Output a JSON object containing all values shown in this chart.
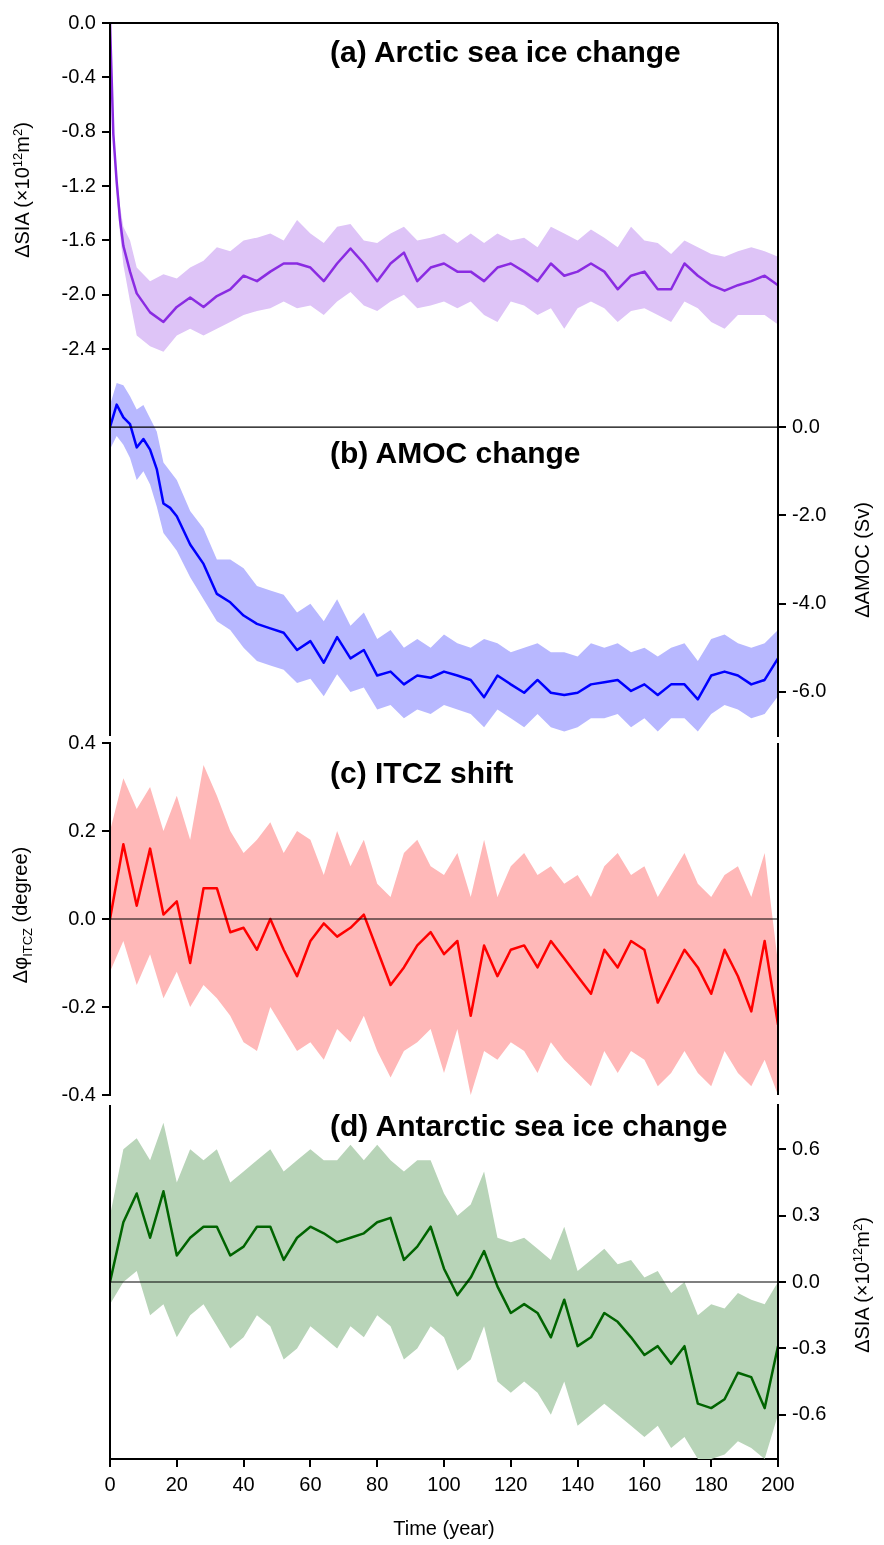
{
  "chart_data": [
    {
      "type": "line",
      "title": "(a) Arctic sea ice change",
      "ylabel": "ΔSIA (×10$^{12}$m$^{2}$)",
      "tick_labels": "y",
      "xlim": [
        0,
        200
      ],
      "ylim": [
        -2.9,
        0
      ],
      "yticks": [
        {
          "value": 0,
          "label": "0.0"
        },
        {
          "value": -0.4,
          "label": "-0.4"
        },
        {
          "value": -0.8,
          "label": "-0.8"
        },
        {
          "value": -1.2,
          "label": "-1.2"
        },
        {
          "value": -1.6,
          "label": "-1.6"
        },
        {
          "value": -2.0,
          "label": "-2.0"
        },
        {
          "value": -2.4,
          "label": "-2.4"
        }
      ],
      "x": [
        0,
        1,
        2,
        3,
        4,
        6,
        8,
        12,
        16,
        20,
        24,
        28,
        32,
        36,
        40,
        44,
        48,
        52,
        56,
        60,
        64,
        68,
        72,
        76,
        80,
        84,
        88,
        92,
        96,
        100,
        104,
        108,
        112,
        116,
        120,
        124,
        128,
        132,
        136,
        140,
        144,
        148,
        152,
        156,
        160,
        164,
        168,
        172,
        176,
        180,
        184,
        188,
        192,
        196,
        200
      ],
      "series": [
        {
          "color": "#8a2be2",
          "values": [
            0,
            -0.82,
            -1.17,
            -1.45,
            -1.64,
            -1.83,
            -1.99,
            -2.13,
            -2.2,
            -2.09,
            -2.02,
            -2.09,
            -2.01,
            -1.96,
            -1.86,
            -1.9,
            -1.83,
            -1.77,
            -1.77,
            -1.8,
            -1.9,
            -1.77,
            -1.66,
            -1.77,
            -1.9,
            -1.77,
            -1.69,
            -1.9,
            -1.8,
            -1.77,
            -1.83,
            -1.83,
            -1.9,
            -1.8,
            -1.77,
            -1.83,
            -1.9,
            -1.77,
            -1.86,
            -1.83,
            -1.77,
            -1.83,
            -1.96,
            -1.86,
            -1.83,
            -1.96,
            -1.96,
            -1.77,
            -1.86,
            -1.93,
            -1.97,
            -1.93,
            -1.9,
            -1.86,
            -1.93
          ],
          "upper": [
            0,
            -0.78,
            -1.1,
            -1.35,
            -1.5,
            -1.6,
            -1.8,
            -1.9,
            -1.85,
            -1.88,
            -1.8,
            -1.75,
            -1.65,
            -1.68,
            -1.6,
            -1.58,
            -1.55,
            -1.6,
            -1.45,
            -1.55,
            -1.62,
            -1.5,
            -1.48,
            -1.6,
            -1.62,
            -1.55,
            -1.5,
            -1.6,
            -1.58,
            -1.55,
            -1.62,
            -1.55,
            -1.62,
            -1.55,
            -1.6,
            -1.58,
            -1.65,
            -1.5,
            -1.55,
            -1.6,
            -1.52,
            -1.58,
            -1.65,
            -1.5,
            -1.6,
            -1.62,
            -1.7,
            -1.6,
            -1.65,
            -1.7,
            -1.72,
            -1.68,
            -1.65,
            -1.68,
            -1.72
          ],
          "lower": [
            0,
            -0.85,
            -1.25,
            -1.55,
            -1.78,
            -2.05,
            -2.3,
            -2.38,
            -2.42,
            -2.3,
            -2.25,
            -2.3,
            -2.25,
            -2.2,
            -2.15,
            -2.12,
            -2.1,
            -2.05,
            -2.1,
            -2.08,
            -2.15,
            -2.05,
            -1.98,
            -2.08,
            -2.12,
            -2.05,
            -2.0,
            -2.1,
            -2.08,
            -2.05,
            -2.1,
            -2.05,
            -2.15,
            -2.2,
            -2.05,
            -2.08,
            -2.15,
            -2.1,
            -2.25,
            -2.1,
            -2.05,
            -2.1,
            -2.2,
            -2.12,
            -2.1,
            -2.15,
            -2.2,
            -2.05,
            -2.1,
            -2.2,
            -2.25,
            -2.15,
            -2.15,
            -2.15,
            -2.22
          ]
        }
      ]
    },
    {
      "type": "line",
      "title": "(b) AMOC change",
      "y2label": "ΔAMOC (Sv)",
      "tick_labels": "y",
      "xlim": [
        0,
        200
      ],
      "y2lim": [
        -7,
        1
      ],
      "y2ticks": [
        {
          "value": 0,
          "label": "0.0"
        },
        {
          "value": -2,
          "label": "-2.0"
        },
        {
          "value": -4,
          "label": "-4.0"
        },
        {
          "value": -6,
          "label": "-6.0"
        }
      ],
      "ref_lines": [
        {
          "axis": "y2",
          "value": 0,
          "color": "#000000"
        }
      ],
      "x": [
        0,
        2,
        4,
        6,
        8,
        10,
        12,
        14,
        16,
        18,
        20,
        24,
        28,
        32,
        36,
        40,
        44,
        48,
        52,
        56,
        60,
        64,
        68,
        72,
        76,
        80,
        84,
        88,
        92,
        96,
        100,
        104,
        108,
        112,
        116,
        120,
        124,
        128,
        132,
        136,
        140,
        144,
        148,
        152,
        156,
        160,
        164,
        168,
        172,
        176,
        180,
        184,
        188,
        192,
        196,
        200
      ],
      "series": [
        {
          "color": "#0000ff",
          "axis": "y2",
          "values": [
            0,
            0.51,
            0.22,
            0.07,
            -0.46,
            -0.27,
            -0.51,
            -0.95,
            -1.73,
            -1.83,
            -2.02,
            -2.66,
            -3.1,
            -3.78,
            -3.97,
            -4.27,
            -4.46,
            -4.56,
            -4.66,
            -5.05,
            -4.85,
            -5.34,
            -4.76,
            -5.24,
            -5.05,
            -5.63,
            -5.54,
            -5.83,
            -5.63,
            -5.68,
            -5.54,
            -5.63,
            -5.73,
            -6.12,
            -5.63,
            -5.83,
            -6.02,
            -5.73,
            -6.02,
            -6.07,
            -6.02,
            -5.83,
            -5.78,
            -5.73,
            -5.98,
            -5.83,
            -6.07,
            -5.83,
            -5.83,
            -6.17,
            -5.63,
            -5.54,
            -5.63,
            -5.83,
            -5.73,
            -5.24
          ],
          "upper": [
            0.5,
            1.0,
            0.95,
            0.7,
            0.4,
            0.5,
            0.2,
            -0.1,
            -0.8,
            -1.0,
            -1.2,
            -1.9,
            -2.3,
            -3.0,
            -3.0,
            -3.2,
            -3.6,
            -3.7,
            -3.8,
            -4.2,
            -4.0,
            -4.4,
            -3.9,
            -4.5,
            -4.2,
            -4.8,
            -4.6,
            -5.0,
            -4.8,
            -5.0,
            -4.7,
            -4.9,
            -5.0,
            -4.8,
            -4.9,
            -5.1,
            -5.0,
            -4.9,
            -5.1,
            -5.1,
            -5.2,
            -4.9,
            -5.0,
            -4.9,
            -5.1,
            -5.0,
            -5.2,
            -5.0,
            -4.9,
            -5.3,
            -4.8,
            -4.7,
            -4.9,
            -5.0,
            -4.9,
            -4.6
          ],
          "lower": [
            -0.5,
            -0.2,
            -0.4,
            -0.7,
            -1.2,
            -1.0,
            -1.3,
            -1.8,
            -2.4,
            -2.6,
            -2.8,
            -3.4,
            -3.9,
            -4.4,
            -4.6,
            -5.0,
            -5.3,
            -5.4,
            -5.5,
            -5.8,
            -5.7,
            -6.1,
            -5.6,
            -6.0,
            -5.9,
            -6.4,
            -6.3,
            -6.6,
            -6.4,
            -6.5,
            -6.3,
            -6.4,
            -6.5,
            -6.8,
            -6.4,
            -6.6,
            -6.8,
            -6.5,
            -6.8,
            -6.9,
            -6.8,
            -6.6,
            -6.6,
            -6.5,
            -6.8,
            -6.6,
            -6.9,
            -6.6,
            -6.6,
            -6.9,
            -6.5,
            -6.3,
            -6.4,
            -6.6,
            -6.5,
            -6.1
          ]
        }
      ]
    },
    {
      "type": "line",
      "title": "(c) ITCZ shift",
      "ylabel": "Δφ$_{ITCZ}$ (degree)",
      "tick_labels": "y",
      "xlim": [
        0,
        200
      ],
      "ylim": [
        -0.4,
        0.4
      ],
      "yticks": [
        {
          "value": 0.4,
          "label": "0.4"
        },
        {
          "value": 0.2,
          "label": "0.2"
        },
        {
          "value": 0,
          "label": "0.0"
        },
        {
          "value": -0.2,
          "label": "-0.2"
        },
        {
          "value": -0.4,
          "label": "-0.4"
        }
      ],
      "ref_lines": [
        {
          "axis": "y",
          "value": 0,
          "color": "#000000"
        }
      ],
      "x": [
        0,
        4,
        8,
        12,
        16,
        20,
        24,
        28,
        32,
        36,
        40,
        44,
        48,
        52,
        56,
        60,
        64,
        68,
        72,
        76,
        80,
        84,
        88,
        92,
        96,
        100,
        104,
        108,
        112,
        116,
        120,
        124,
        128,
        132,
        136,
        140,
        144,
        148,
        152,
        156,
        160,
        164,
        168,
        172,
        176,
        180,
        184,
        188,
        192,
        196,
        200
      ],
      "series": [
        {
          "color": "#ff0000",
          "values": [
            0,
            0.17,
            0.03,
            0.16,
            0.01,
            0.04,
            -0.1,
            0.07,
            0.07,
            -0.03,
            -0.02,
            -0.07,
            0,
            -0.07,
            -0.13,
            -0.05,
            -0.01,
            -0.04,
            -0.02,
            0.01,
            -0.07,
            -0.15,
            -0.11,
            -0.06,
            -0.03,
            -0.08,
            -0.05,
            -0.22,
            -0.06,
            -0.13,
            -0.07,
            -0.06,
            -0.11,
            -0.05,
            -0.09,
            -0.13,
            -0.17,
            -0.07,
            -0.11,
            -0.05,
            -0.07,
            -0.19,
            -0.13,
            -0.07,
            -0.11,
            -0.17,
            -0.07,
            -0.13,
            -0.21,
            -0.05,
            -0.24
          ],
          "upper": [
            0.2,
            0.32,
            0.25,
            0.3,
            0.2,
            0.28,
            0.18,
            0.35,
            0.28,
            0.2,
            0.15,
            0.18,
            0.22,
            0.15,
            0.2,
            0.18,
            0.1,
            0.2,
            0.12,
            0.18,
            0.08,
            0.05,
            0.15,
            0.18,
            0.12,
            0.1,
            0.15,
            0.05,
            0.18,
            0.05,
            0.12,
            0.15,
            0.1,
            0.12,
            0.08,
            0.1,
            0.05,
            0.12,
            0.15,
            0.1,
            0.12,
            0.05,
            0.1,
            0.15,
            0.08,
            0.05,
            0.1,
            0.12,
            0.05,
            0.15,
            -0.1
          ],
          "lower": [
            -0.12,
            -0.05,
            -0.15,
            -0.08,
            -0.18,
            -0.12,
            -0.2,
            -0.15,
            -0.18,
            -0.22,
            -0.28,
            -0.3,
            -0.2,
            -0.25,
            -0.3,
            -0.28,
            -0.32,
            -0.25,
            -0.28,
            -0.22,
            -0.3,
            -0.36,
            -0.3,
            -0.28,
            -0.25,
            -0.35,
            -0.25,
            -0.4,
            -0.3,
            -0.32,
            -0.28,
            -0.3,
            -0.35,
            -0.28,
            -0.32,
            -0.35,
            -0.38,
            -0.3,
            -0.35,
            -0.3,
            -0.32,
            -0.38,
            -0.35,
            -0.3,
            -0.35,
            -0.38,
            -0.3,
            -0.35,
            -0.38,
            -0.32,
            -0.4
          ]
        }
      ]
    },
    {
      "type": "line",
      "title": "(d) Antarctic sea ice change",
      "xlabel": "Time (year)",
      "y2label": "ΔSIA (×10$^{12}$m$^{2}$)",
      "xlim": [
        0,
        200
      ],
      "xticks": [
        0,
        20,
        40,
        60,
        80,
        100,
        120,
        140,
        160,
        180,
        200
      ],
      "y2lim": [
        -0.8,
        0.8
      ],
      "y2ticks": [
        {
          "value": 0.6,
          "label": "0.6"
        },
        {
          "value": 0.3,
          "label": "0.3"
        },
        {
          "value": 0,
          "label": "0.0"
        },
        {
          "value": -0.3,
          "label": "-0.3"
        },
        {
          "value": -0.6,
          "label": "-0.6"
        }
      ],
      "ref_lines": [
        {
          "axis": "y2",
          "value": 0,
          "color": "#000000"
        }
      ],
      "x": [
        0,
        4,
        8,
        12,
        16,
        20,
        24,
        28,
        32,
        36,
        40,
        44,
        48,
        52,
        56,
        60,
        64,
        68,
        72,
        76,
        80,
        84,
        88,
        92,
        96,
        100,
        104,
        108,
        112,
        116,
        120,
        124,
        128,
        132,
        136,
        140,
        144,
        148,
        152,
        156,
        160,
        164,
        168,
        172,
        176,
        180,
        184,
        188,
        192,
        196,
        200
      ],
      "series": [
        {
          "color": "#006400",
          "axis": "y2",
          "values": [
            0,
            0.27,
            0.4,
            0.2,
            0.41,
            0.12,
            0.2,
            0.25,
            0.25,
            0.12,
            0.16,
            0.25,
            0.25,
            0.1,
            0.2,
            0.25,
            0.22,
            0.18,
            0.2,
            0.22,
            0.27,
            0.29,
            0.1,
            0.16,
            0.25,
            0.06,
            -0.06,
            0.02,
            0.14,
            -0.02,
            -0.14,
            -0.1,
            -0.14,
            -0.25,
            -0.08,
            -0.29,
            -0.25,
            -0.14,
            -0.18,
            -0.25,
            -0.33,
            -0.29,
            -0.37,
            -0.29,
            -0.55,
            -0.57,
            -0.53,
            -0.41,
            -0.43,
            -0.57,
            -0.29
          ],
          "upper": [
            0.3,
            0.6,
            0.65,
            0.55,
            0.72,
            0.45,
            0.6,
            0.55,
            0.6,
            0.45,
            0.5,
            0.55,
            0.6,
            0.5,
            0.55,
            0.6,
            0.55,
            0.55,
            0.62,
            0.55,
            0.62,
            0.55,
            0.5,
            0.55,
            0.55,
            0.4,
            0.3,
            0.35,
            0.5,
            0.2,
            0.18,
            0.2,
            0.15,
            0.1,
            0.25,
            0.05,
            0.1,
            0.15,
            0.08,
            0.1,
            0.02,
            0.05,
            -0.05,
            0,
            -0.15,
            -0.1,
            -0.12,
            -0.05,
            -0.08,
            -0.1,
            0
          ],
          "lower": [
            -0.1,
            0,
            0.05,
            -0.15,
            -0.1,
            -0.25,
            -0.15,
            -0.1,
            -0.2,
            -0.3,
            -0.25,
            -0.15,
            -0.2,
            -0.35,
            -0.3,
            -0.2,
            -0.25,
            -0.3,
            -0.2,
            -0.25,
            -0.15,
            -0.2,
            -0.35,
            -0.3,
            -0.2,
            -0.25,
            -0.4,
            -0.35,
            -0.2,
            -0.45,
            -0.5,
            -0.45,
            -0.5,
            -0.6,
            -0.45,
            -0.65,
            -0.6,
            -0.55,
            -0.6,
            -0.65,
            -0.7,
            -0.65,
            -0.75,
            -0.7,
            -0.8,
            -0.8,
            -0.78,
            -0.72,
            -0.75,
            -0.8,
            -0.6
          ]
        }
      ]
    }
  ]
}
